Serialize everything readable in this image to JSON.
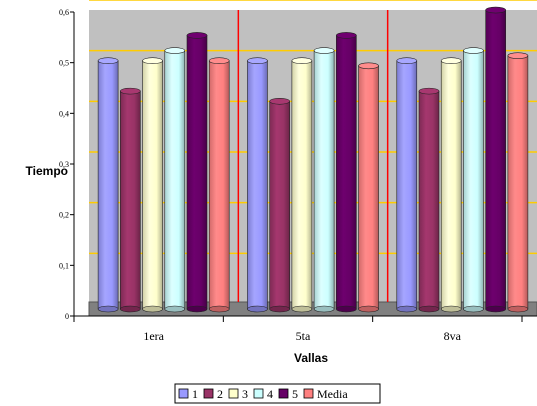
{
  "chart_data": {
    "type": "bar",
    "categories": [
      "1era",
      "5ta",
      "8va"
    ],
    "series": [
      {
        "name": "1",
        "values": [
          0.49,
          0.49,
          0.49
        ],
        "color": "#9999ff"
      },
      {
        "name": "2",
        "values": [
          0.43,
          0.41,
          0.43
        ],
        "color": "#993366"
      },
      {
        "name": "3",
        "values": [
          0.49,
          0.49,
          0.49
        ],
        "color": "#ffffcc"
      },
      {
        "name": "4",
        "values": [
          0.51,
          0.51,
          0.51
        ],
        "color": "#ccffff"
      },
      {
        "name": "5",
        "values": [
          0.54,
          0.54,
          0.59
        ],
        "color": "#660066"
      },
      {
        "name": "Media",
        "values": [
          0.49,
          0.48,
          0.5
        ],
        "color": "#ff8080"
      }
    ],
    "xlabel": "Vallas",
    "ylabel": "Tiempo",
    "ylim": [
      0,
      0.6
    ],
    "yticks": [
      "0",
      "0,1",
      "0,2",
      "0,3",
      "0,4",
      "0,5",
      "0,6"
    ],
    "ytick_values": [
      0,
      0.1,
      0.2,
      0.3,
      0.4,
      0.5,
      0.6
    ],
    "grid": true,
    "legend_position": "bottom",
    "colors": {
      "plot_background": "#c0c0c0",
      "grid_line": "#ffcc00",
      "category_divider": "#ff0000",
      "floor": "#808080"
    }
  }
}
